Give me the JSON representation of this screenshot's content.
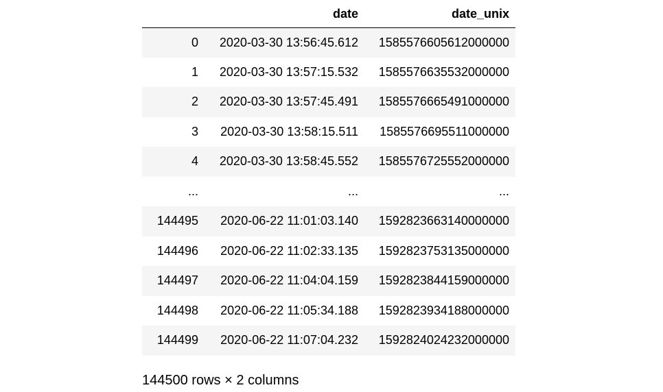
{
  "table": {
    "columns": [
      "",
      "date",
      "date_unix"
    ],
    "rows": [
      [
        "0",
        "2020-03-30 13:56:45.612",
        "1585576605612000000"
      ],
      [
        "1",
        "2020-03-30 13:57:15.532",
        "1585576635532000000"
      ],
      [
        "2",
        "2020-03-30 13:57:45.491",
        "1585576665491000000"
      ],
      [
        "3",
        "2020-03-30 13:58:15.511",
        "1585576695511000000"
      ],
      [
        "4",
        "2020-03-30 13:58:45.552",
        "1585576725552000000"
      ],
      [
        "...",
        "...",
        "..."
      ],
      [
        "144495",
        "2020-06-22 11:01:03.140",
        "1592823663140000000"
      ],
      [
        "144496",
        "2020-06-22 11:02:33.135",
        "1592823753135000000"
      ],
      [
        "144497",
        "2020-06-22 11:04:04.159",
        "1592823844159000000"
      ],
      [
        "144498",
        "2020-06-22 11:05:34.188",
        "1592823934188000000"
      ],
      [
        "144499",
        "2020-06-22 11:07:04.232",
        "1592824024232000000"
      ]
    ]
  },
  "shape_caption": "144500 rows × 2 columns"
}
